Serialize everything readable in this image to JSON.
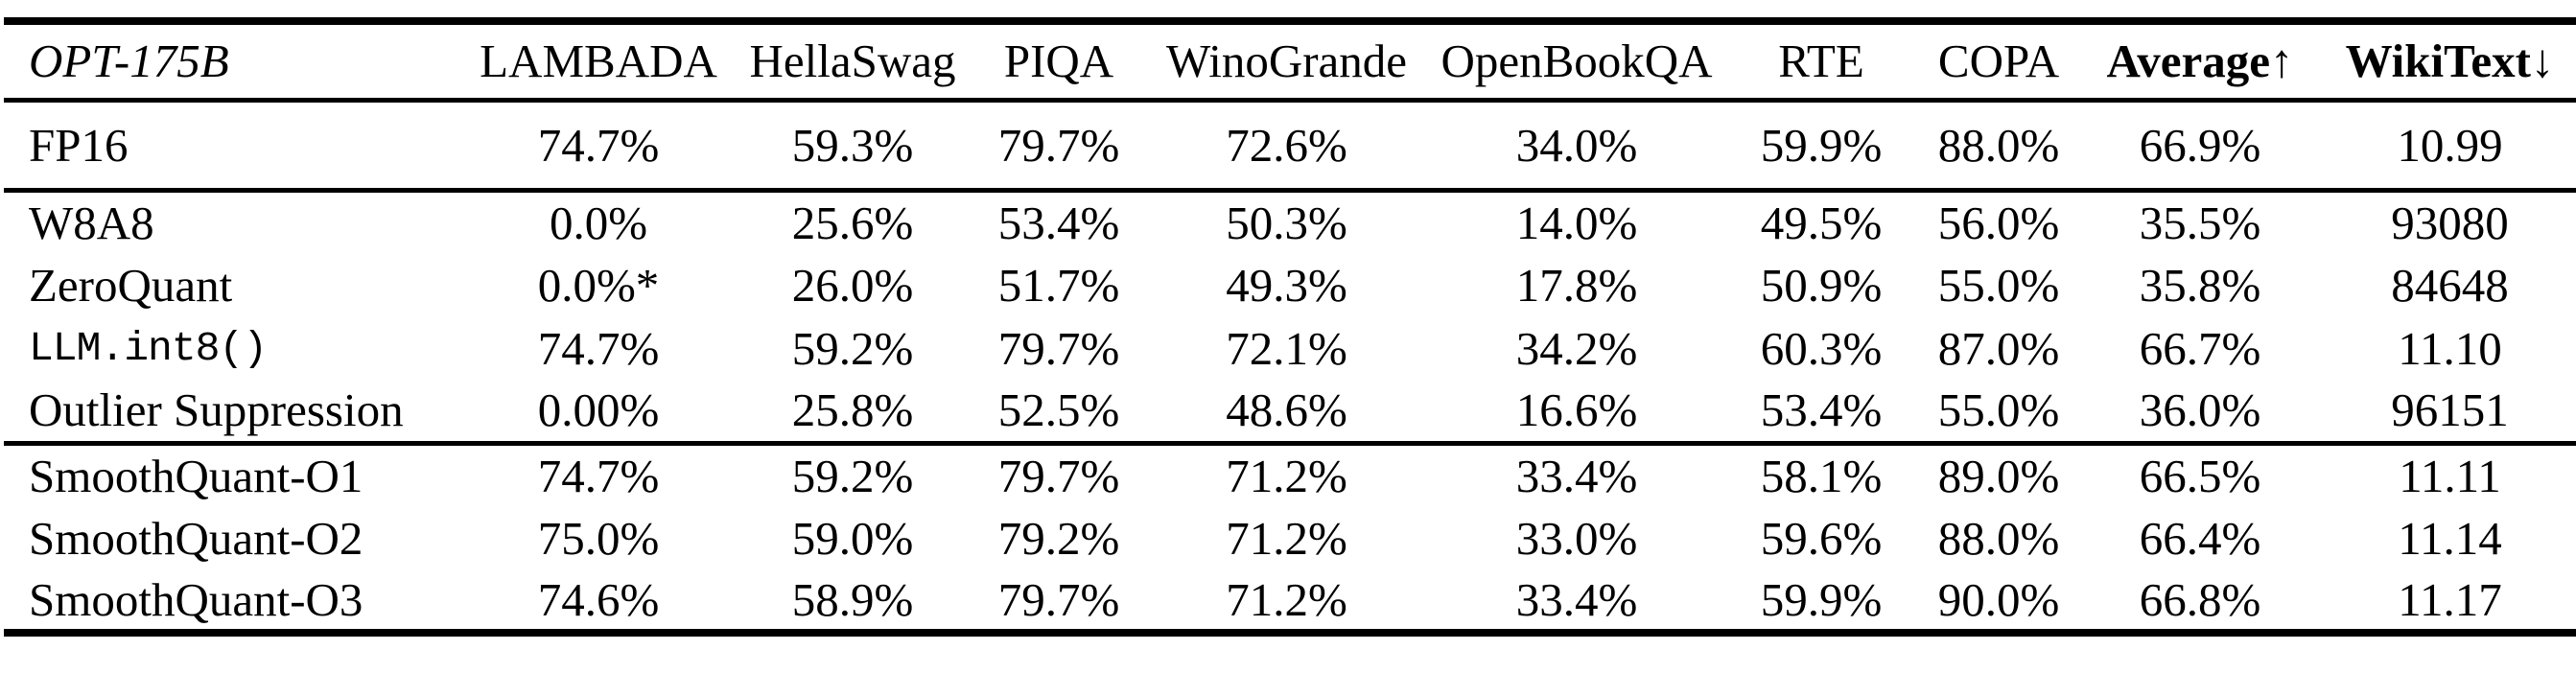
{
  "table": {
    "model_label": "OPT-175B",
    "columns": [
      "LAMBADA",
      "HellaSwag",
      "PIQA",
      "WinoGrande",
      "OpenBookQA",
      "RTE",
      "COPA",
      "Average↑",
      "WikiText↓"
    ],
    "groups": [
      {
        "name": "baseline",
        "rows": [
          {
            "label": "FP16",
            "code": false,
            "values": [
              "74.7%",
              "59.3%",
              "79.7%",
              "72.6%",
              "34.0%",
              "59.9%",
              "88.0%",
              "66.9%",
              "10.99"
            ]
          }
        ]
      },
      {
        "name": "prior-methods",
        "rows": [
          {
            "label": "W8A8",
            "code": false,
            "values": [
              "0.0%",
              "25.6%",
              "53.4%",
              "50.3%",
              "14.0%",
              "49.5%",
              "56.0%",
              "35.5%",
              "93080"
            ]
          },
          {
            "label": "ZeroQuant",
            "code": false,
            "values": [
              "0.0%*",
              "26.0%",
              "51.7%",
              "49.3%",
              "17.8%",
              "50.9%",
              "55.0%",
              "35.8%",
              "84648"
            ]
          },
          {
            "label": "LLM.int8()",
            "code": true,
            "values": [
              "74.7%",
              "59.2%",
              "79.7%",
              "72.1%",
              "34.2%",
              "60.3%",
              "87.0%",
              "66.7%",
              "11.10"
            ]
          },
          {
            "label": "Outlier Suppression",
            "code": false,
            "values": [
              "0.00%",
              "25.8%",
              "52.5%",
              "48.6%",
              "16.6%",
              "53.4%",
              "55.0%",
              "36.0%",
              "96151"
            ]
          }
        ]
      },
      {
        "name": "smoothquant",
        "rows": [
          {
            "label": "SmoothQuant-O1",
            "code": false,
            "values": [
              "74.7%",
              "59.2%",
              "79.7%",
              "71.2%",
              "33.4%",
              "58.1%",
              "89.0%",
              "66.5%",
              "11.11"
            ]
          },
          {
            "label": "SmoothQuant-O2",
            "code": false,
            "values": [
              "75.0%",
              "59.0%",
              "79.2%",
              "71.2%",
              "33.0%",
              "59.6%",
              "88.0%",
              "66.4%",
              "11.14"
            ]
          },
          {
            "label": "SmoothQuant-O3",
            "code": false,
            "values": [
              "74.6%",
              "58.9%",
              "79.7%",
              "71.2%",
              "33.4%",
              "59.9%",
              "90.0%",
              "66.8%",
              "11.17"
            ]
          }
        ]
      }
    ]
  },
  "colors": {
    "text": "#000000",
    "background": "#ffffff",
    "rule": "#000000"
  }
}
